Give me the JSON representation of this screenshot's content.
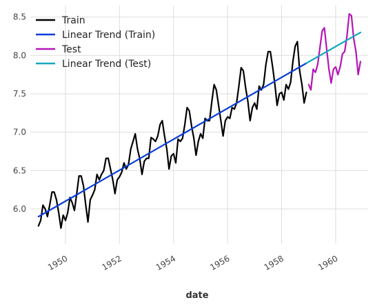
{
  "chart_data": {
    "type": "line",
    "xlabel": "date",
    "ylabel": "",
    "grid": true,
    "legend_position": "top-left",
    "xlim": [
      1948.7,
      1961.2
    ],
    "ylim": [
      5.55,
      8.65
    ],
    "x_ticks": [
      1950,
      1952,
      1954,
      1956,
      1958,
      1960
    ],
    "x_tick_labels": [
      "1950",
      "1952",
      "1954",
      "1956",
      "1958",
      "1960"
    ],
    "y_ticks": [
      6.0,
      6.5,
      7.0,
      7.5,
      8.0,
      8.5
    ],
    "y_tick_labels": [
      "6.0",
      "6.5",
      "7.0",
      "7.5",
      "8.0",
      "8.5"
    ],
    "series": [
      {
        "name": "Train",
        "color": "#000000",
        "x_start": 1949.0,
        "x_step": 0.0833333,
        "values": [
          5.78,
          5.85,
          6.05,
          6.0,
          5.9,
          6.05,
          6.22,
          6.22,
          6.12,
          5.95,
          5.75,
          5.92,
          5.85,
          5.95,
          6.15,
          6.08,
          5.98,
          6.2,
          6.43,
          6.43,
          6.3,
          6.05,
          5.83,
          6.12,
          6.18,
          6.25,
          6.45,
          6.38,
          6.45,
          6.5,
          6.66,
          6.66,
          6.52,
          6.38,
          6.2,
          6.38,
          6.42,
          6.48,
          6.6,
          6.52,
          6.58,
          6.78,
          6.88,
          6.98,
          6.78,
          6.65,
          6.45,
          6.62,
          6.66,
          6.66,
          6.93,
          6.91,
          6.88,
          6.95,
          7.1,
          7.15,
          6.95,
          6.78,
          6.52,
          6.69,
          6.72,
          6.6,
          6.91,
          6.88,
          6.92,
          7.1,
          7.32,
          7.28,
          7.08,
          6.92,
          6.7,
          6.88,
          6.98,
          6.92,
          7.18,
          7.15,
          7.15,
          7.4,
          7.62,
          7.55,
          7.35,
          7.15,
          6.95,
          7.15,
          7.2,
          7.18,
          7.32,
          7.3,
          7.38,
          7.6,
          7.84,
          7.8,
          7.58,
          7.4,
          7.15,
          7.32,
          7.38,
          7.3,
          7.6,
          7.55,
          7.62,
          7.88,
          8.05,
          8.05,
          7.85,
          7.62,
          7.35,
          7.5,
          7.52,
          7.42,
          7.62,
          7.56,
          7.65,
          7.92,
          8.12,
          8.18,
          7.8,
          7.62,
          7.38,
          7.52
        ]
      },
      {
        "name": "Linear Trend (Train)",
        "color": "#0a3ed8",
        "x": [
          1949.0,
          1958.92
        ],
        "values": [
          5.9,
          7.9
        ]
      },
      {
        "name": "Test",
        "color": "#b514b8",
        "x_start": 1959.0,
        "x_step": 0.0833333,
        "values": [
          7.62,
          7.55,
          7.82,
          7.78,
          7.88,
          8.1,
          8.32,
          8.36,
          8.08,
          7.82,
          7.64,
          7.82,
          7.85,
          7.75,
          7.85,
          8.02,
          8.05,
          8.25,
          8.54,
          8.52,
          8.22,
          8.05,
          7.75,
          7.92
        ]
      },
      {
        "name": "Linear Trend (Test)",
        "color": "#17a8bf",
        "x": [
          1958.92,
          1960.92
        ],
        "values": [
          7.9,
          8.3
        ]
      }
    ]
  }
}
